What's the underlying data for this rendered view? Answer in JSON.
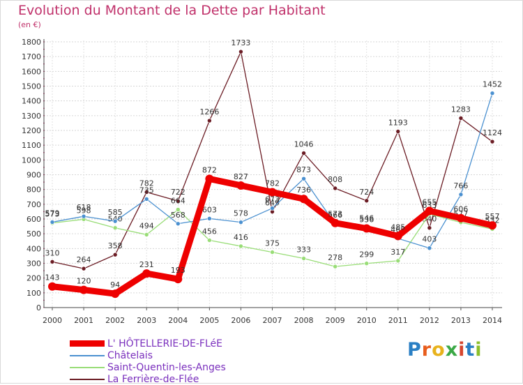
{
  "title": "Evolution du Montant de la Dette par Habitant",
  "unit": "(en €)",
  "logo": {
    "text": "Proxiti",
    "colors": [
      "#2a7fc4",
      "#e85d1c",
      "#e8b21c",
      "#3aa845",
      "#d6462e",
      "#2a7fc4",
      "#8bbf2a"
    ]
  },
  "chart_data": {
    "type": "line",
    "x": [
      "2000",
      "2001",
      "2002",
      "2003",
      "2004",
      "2005",
      "2006",
      "2007",
      "2008",
      "2009",
      "2010",
      "2011",
      "2012",
      "2013",
      "2014"
    ],
    "ylim": [
      0,
      1800
    ],
    "yticks": [
      0,
      100,
      200,
      300,
      400,
      500,
      600,
      700,
      800,
      900,
      1000,
      1100,
      1200,
      1300,
      1400,
      1500,
      1600,
      1700,
      1800
    ],
    "grid": true,
    "legend_position": "bottom-left",
    "series": [
      {
        "name": "La Ferrière-de-Flée",
        "color": "#6b1c24",
        "values": [
          310,
          264,
          358,
          782,
          722,
          1266,
          1733,
          649,
          1046,
          808,
          724,
          1193,
          540,
          1283,
          1124
        ]
      },
      {
        "name": "Saint-Quentin-les-Anges",
        "color": "#99dd77",
        "values": [
          573,
          598,
          540,
          494,
          664,
          456,
          416,
          375,
          333,
          278,
          299,
          317,
          633,
          577,
          532
        ]
      },
      {
        "name": "Châtelais",
        "color": "#4a90d0",
        "values": [
          579,
          618,
          585,
          735,
          568,
          603,
          578,
          673,
          873,
          566,
          546,
          468,
          403,
          766,
          1452
        ]
      },
      {
        "name": "L' HÔTELLERIE-DE-FLéE",
        "color": "#ee0000",
        "values": [
          143,
          120,
          94,
          231,
          193,
          872,
          827,
          782,
          736,
          573,
          536,
          485,
          655,
          606,
          557
        ]
      }
    ]
  }
}
